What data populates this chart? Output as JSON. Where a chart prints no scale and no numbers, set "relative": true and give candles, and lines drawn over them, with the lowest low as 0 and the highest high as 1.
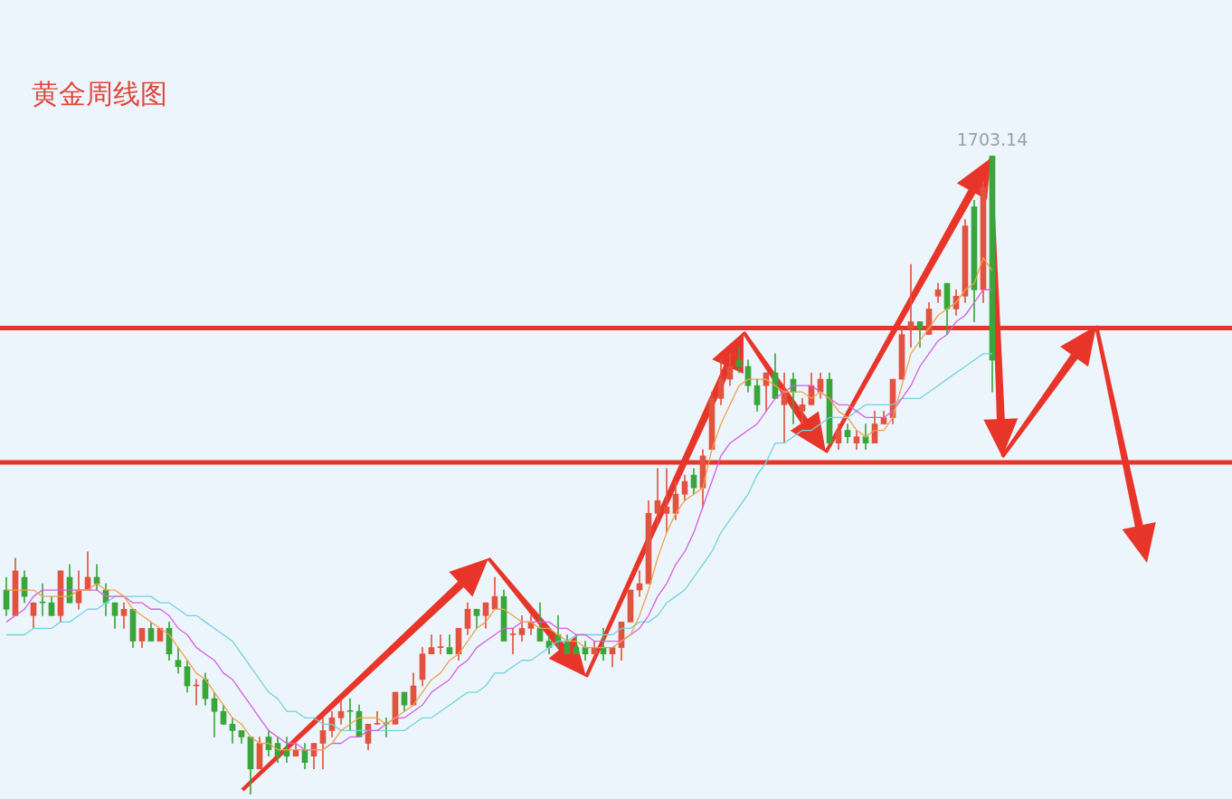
{
  "chart_data": {
    "type": "candlestick",
    "title": "黄金周线图",
    "relative": true,
    "categories": [
      null,
      null,
      null,
      null,
      null,
      null,
      null,
      null,
      null,
      null,
      null,
      null,
      null,
      null,
      null,
      null,
      null,
      null,
      null,
      null,
      null,
      null,
      null,
      null,
      null,
      null,
      null,
      null,
      null,
      null,
      null,
      null,
      null,
      null,
      null,
      null,
      null,
      null,
      null,
      null,
      null,
      null,
      null,
      null,
      null,
      null,
      null,
      null,
      null,
      null,
      null,
      null,
      null,
      null,
      null,
      null,
      null,
      null,
      null,
      null,
      null,
      null,
      null,
      null,
      null,
      null,
      null,
      null,
      null,
      null,
      null,
      null,
      null,
      null,
      null,
      null,
      null,
      null,
      null,
      null,
      null,
      null,
      null,
      null,
      null,
      null,
      null,
      null,
      null,
      null,
      null,
      null,
      null,
      null,
      null,
      null,
      null,
      null,
      null,
      null,
      null,
      null,
      null,
      null,
      null,
      null,
      null,
      null,
      null,
      null
    ],
    "ohlc": [
      [
        0.32,
        0.34,
        0.28,
        0.29
      ],
      [
        0.28,
        0.37,
        0.28,
        0.35
      ],
      [
        0.34,
        0.35,
        0.3,
        0.31
      ],
      [
        0.28,
        0.3,
        0.26,
        0.3
      ],
      [
        0.3,
        0.33,
        0.28,
        0.3
      ],
      [
        0.3,
        0.31,
        0.28,
        0.28
      ],
      [
        0.28,
        0.35,
        0.27,
        0.35
      ],
      [
        0.34,
        0.36,
        0.3,
        0.3
      ],
      [
        0.3,
        0.35,
        0.29,
        0.32
      ],
      [
        0.32,
        0.38,
        0.32,
        0.34
      ],
      [
        0.34,
        0.36,
        0.32,
        0.33
      ],
      [
        0.32,
        0.33,
        0.28,
        0.3
      ],
      [
        0.3,
        0.3,
        0.26,
        0.28
      ],
      [
        0.28,
        0.3,
        0.26,
        0.29
      ],
      [
        0.29,
        0.29,
        0.23,
        0.24
      ],
      [
        0.24,
        0.26,
        0.23,
        0.26
      ],
      [
        0.26,
        0.27,
        0.24,
        0.24
      ],
      [
        0.24,
        0.26,
        0.24,
        0.26
      ],
      [
        0.26,
        0.27,
        0.21,
        0.22
      ],
      [
        0.21,
        0.23,
        0.19,
        0.2
      ],
      [
        0.2,
        0.21,
        0.16,
        0.17
      ],
      [
        0.17,
        0.18,
        0.14,
        0.17
      ],
      [
        0.18,
        0.19,
        0.14,
        0.15
      ],
      [
        0.15,
        0.16,
        0.09,
        0.13
      ],
      [
        0.13,
        0.14,
        0.11,
        0.11
      ],
      [
        0.11,
        0.12,
        0.08,
        0.1
      ],
      [
        0.1,
        0.1,
        0.08,
        0.09
      ],
      [
        0.09,
        0.09,
        0,
        0.04
      ],
      [
        0.04,
        0.09,
        0.04,
        0.08
      ],
      [
        0.09,
        0.1,
        0.06,
        0.07
      ],
      [
        0.08,
        0.09,
        0.05,
        0.06
      ],
      [
        0.07,
        0.09,
        0.05,
        0.06
      ],
      [
        0.06,
        0.08,
        0.06,
        0.07
      ],
      [
        0.07,
        0.08,
        0.04,
        0.05
      ],
      [
        0.06,
        0.08,
        0.04,
        0.08
      ],
      [
        0.08,
        0.12,
        0.04,
        0.1
      ],
      [
        0.1,
        0.13,
        0.09,
        0.12
      ],
      [
        0.12,
        0.15,
        0.11,
        0.13
      ],
      [
        0.13,
        0.15,
        0.1,
        0.13
      ],
      [
        0.13,
        0.14,
        0.09,
        0.09
      ],
      [
        0.08,
        0.11,
        0.07,
        0.11
      ],
      [
        0.11,
        0.13,
        0.11,
        0.11
      ],
      [
        0.11,
        0.12,
        0.09,
        0.11
      ],
      [
        0.11,
        0.16,
        0.11,
        0.16
      ],
      [
        0.16,
        0.16,
        0.13,
        0.14
      ],
      [
        0.14,
        0.19,
        0.14,
        0.17
      ],
      [
        0.18,
        0.23,
        0.17,
        0.22
      ],
      [
        0.22,
        0.25,
        0.22,
        0.23
      ],
      [
        0.23,
        0.25,
        0.22,
        0.23
      ],
      [
        0.23,
        0.25,
        0.22,
        0.22
      ],
      [
        0.22,
        0.26,
        0.21,
        0.26
      ],
      [
        0.26,
        0.3,
        0.25,
        0.29
      ],
      [
        0.29,
        0.29,
        0.26,
        0.28
      ],
      [
        0.28,
        0.3,
        0.26,
        0.3
      ],
      [
        0.29,
        0.34,
        0.29,
        0.31
      ],
      [
        0.31,
        0.32,
        0.24,
        0.24
      ],
      [
        0.25,
        0.26,
        0.22,
        0.25
      ],
      [
        0.25,
        0.28,
        0.24,
        0.26
      ],
      [
        0.26,
        0.28,
        0.25,
        0.27
      ],
      [
        0.26,
        0.3,
        0.24,
        0.24
      ],
      [
        0.24,
        0.25,
        0.22,
        0.23
      ],
      [
        0.25,
        0.28,
        0.23,
        0.24
      ],
      [
        0.24,
        0.25,
        0.22,
        0.22
      ],
      [
        0.23,
        0.25,
        0.22,
        0.22
      ],
      [
        0.23,
        0.24,
        0.21,
        0.22
      ],
      [
        0.22,
        0.24,
        0.22,
        0.23
      ],
      [
        0.23,
        0.26,
        0.21,
        0.22
      ],
      [
        0.22,
        0.23,
        0.2,
        0.23
      ],
      [
        0.23,
        0.27,
        0.21,
        0.27
      ],
      [
        0.27,
        0.32,
        0.27,
        0.32
      ],
      [
        0.32,
        0.35,
        0.31,
        0.33
      ],
      [
        0.33,
        0.46,
        0.33,
        0.44
      ],
      [
        0.44,
        0.51,
        0.42,
        0.46
      ],
      [
        0.44,
        0.51,
        0.41,
        0.45
      ],
      [
        0.44,
        0.49,
        0.43,
        0.47
      ],
      [
        0.47,
        0.5,
        0.46,
        0.49
      ],
      [
        0.5,
        0.51,
        0.47,
        0.48
      ],
      [
        0.48,
        0.54,
        0.45,
        0.53
      ],
      [
        0.54,
        0.63,
        0.54,
        0.62
      ],
      [
        0.62,
        0.68,
        0.61,
        0.65
      ],
      [
        0.65,
        0.69,
        0.64,
        0.67
      ],
      [
        0.68,
        0.7,
        0.66,
        0.67
      ],
      [
        0.67,
        0.68,
        0.63,
        0.64
      ],
      [
        0.64,
        0.65,
        0.6,
        0.61
      ],
      [
        0.64,
        0.66,
        0.6,
        0.66
      ],
      [
        0.66,
        0.69,
        0.62,
        0.62
      ],
      [
        0.61,
        0.66,
        0.55,
        0.63
      ],
      [
        0.65,
        0.66,
        0.58,
        0.63
      ],
      [
        0.6,
        0.62,
        0.58,
        0.61
      ],
      [
        0.61,
        0.66,
        0.61,
        0.64
      ],
      [
        0.63,
        0.66,
        0.62,
        0.65
      ],
      [
        0.65,
        0.66,
        0.55,
        0.55
      ],
      [
        0.55,
        0.58,
        0.54,
        0.57
      ],
      [
        0.57,
        0.58,
        0.55,
        0.56
      ],
      [
        0.55,
        0.57,
        0.54,
        0.56
      ],
      [
        0.56,
        0.58,
        0.54,
        0.55
      ],
      [
        0.55,
        0.6,
        0.55,
        0.58
      ],
      [
        0.58,
        0.6,
        0.58,
        0.59
      ],
      [
        0.59,
        0.65,
        0.58,
        0.65
      ],
      [
        0.65,
        0.73,
        0.65,
        0.72
      ],
      [
        0.73,
        0.83,
        0.7,
        0.74
      ],
      [
        0.74,
        0.74,
        0.7,
        0.73
      ],
      [
        0.72,
        0.77,
        0.72,
        0.76
      ],
      [
        0.78,
        0.8,
        0.77,
        0.79
      ],
      [
        0.8,
        0.8,
        0.72,
        0.76
      ],
      [
        0.76,
        0.79,
        0.75,
        0.78
      ],
      [
        0.78,
        0.9,
        0.77,
        0.89
      ],
      [
        0.92,
        0.93,
        0.74,
        0.79
      ],
      [
        0.79,
        0.96,
        0.77,
        0.95
      ],
      [
        1,
        1,
        0.63,
        0.68
      ]
    ],
    "colors": [
      "#3aa53a",
      "#e2533f",
      "#3aa53a",
      "#e2533f",
      "#3aa53a",
      "#3aa53a",
      "#e2533f",
      "#3aa53a",
      "#e2533f",
      "#e2533f",
      "#3aa53a",
      "#3aa53a",
      "#3aa53a",
      "#e2533f",
      "#3aa53a",
      "#e2533f",
      "#3aa53a",
      "#e2533f",
      "#3aa53a",
      "#3aa53a",
      "#3aa53a",
      "#e2533f",
      "#3aa53a",
      "#3aa53a",
      "#3aa53a",
      "#3aa53a",
      "#3aa53a",
      "#3aa53a",
      "#e2533f",
      "#3aa53a",
      "#3aa53a",
      "#3aa53a",
      "#e2533f",
      "#3aa53a",
      "#e2533f",
      "#e2533f",
      "#e2533f",
      "#e2533f",
      "#3aa53a",
      "#3aa53a",
      "#e2533f",
      "#e2533f",
      "#3aa53a",
      "#e2533f",
      "#3aa53a",
      "#e2533f",
      "#e2533f",
      "#e2533f",
      "#e2533f",
      "#3aa53a",
      "#e2533f",
      "#e2533f",
      "#3aa53a",
      "#e2533f",
      "#e2533f",
      "#3aa53a",
      "#e2533f",
      "#e2533f",
      "#e2533f",
      "#3aa53a",
      "#3aa53a",
      "#3aa53a",
      "#3aa53a",
      "#3aa53a",
      "#3aa53a",
      "#e2533f",
      "#3aa53a",
      "#e2533f",
      "#e2533f",
      "#e2533f",
      "#e2533f",
      "#e2533f",
      "#e2533f",
      "#e2533f",
      "#e2533f",
      "#e2533f",
      "#3aa53a",
      "#e2533f",
      "#e2533f",
      "#e2533f",
      "#e2533f",
      "#3aa53a",
      "#3aa53a",
      "#3aa53a",
      "#e2533f",
      "#3aa53a",
      "#e2533f",
      "#3aa53a",
      "#e2533f",
      "#e2533f",
      "#e2533f",
      "#3aa53a",
      "#e2533f",
      "#3aa53a",
      "#e2533f",
      "#3aa53a",
      "#e2533f",
      "#e2533f",
      "#e2533f",
      "#e2533f",
      "#e2533f",
      "#3aa53a",
      "#e2533f",
      "#e2533f",
      "#3aa53a",
      "#e2533f",
      "#e2533f",
      "#3aa53a",
      "#e2533f",
      "#3aa53a"
    ],
    "series": [
      {
        "type": "line",
        "color": "#f0a04b",
        "values": [
          0.32,
          0.32,
          0.32,
          0.32,
          0.31,
          0.31,
          0.31,
          0.31,
          0.32,
          0.32,
          0.33,
          0.32,
          0.32,
          0.31,
          0.29,
          0.28,
          0.27,
          0.26,
          0.25,
          0.23,
          0.21,
          0.19,
          0.18,
          0.16,
          0.14,
          0.12,
          0.11,
          0.09,
          0.08,
          0.08,
          0.07,
          0.07,
          0.07,
          0.07,
          0.07,
          0.07,
          0.08,
          0.1,
          0.11,
          0.12,
          0.12,
          0.12,
          0.11,
          0.12,
          0.13,
          0.14,
          0.16,
          0.18,
          0.19,
          0.21,
          0.22,
          0.24,
          0.26,
          0.27,
          0.29,
          0.29,
          0.28,
          0.27,
          0.27,
          0.26,
          0.26,
          0.25,
          0.24,
          0.24,
          0.23,
          0.23,
          0.23,
          0.23,
          0.24,
          0.25,
          0.28,
          0.32,
          0.37,
          0.41,
          0.44,
          0.46,
          0.47,
          0.48,
          0.54,
          0.58,
          0.61,
          0.64,
          0.65,
          0.65,
          0.65,
          0.64,
          0.63,
          0.63,
          0.63,
          0.62,
          0.63,
          0.62,
          0.6,
          0.59,
          0.57,
          0.56,
          0.57,
          0.57,
          0.59,
          0.64,
          0.69,
          0.71,
          0.73,
          0.75,
          0.76,
          0.77,
          0.79,
          0.8,
          0.84,
          0.82
        ]
      },
      {
        "type": "line",
        "color": "#d65ee0",
        "values": [
          0.27,
          0.28,
          0.29,
          0.31,
          0.32,
          0.32,
          0.32,
          0.32,
          0.32,
          0.32,
          0.32,
          0.31,
          0.31,
          0.31,
          0.3,
          0.3,
          0.29,
          0.29,
          0.28,
          0.26,
          0.25,
          0.23,
          0.22,
          0.21,
          0.19,
          0.18,
          0.16,
          0.14,
          0.12,
          0.1,
          0.09,
          0.08,
          0.08,
          0.07,
          0.07,
          0.07,
          0.08,
          0.08,
          0.09,
          0.09,
          0.1,
          0.1,
          0.11,
          0.12,
          0.12,
          0.13,
          0.14,
          0.16,
          0.17,
          0.18,
          0.2,
          0.21,
          0.23,
          0.24,
          0.25,
          0.26,
          0.26,
          0.27,
          0.27,
          0.27,
          0.27,
          0.26,
          0.26,
          0.25,
          0.25,
          0.24,
          0.24,
          0.24,
          0.24,
          0.25,
          0.26,
          0.28,
          0.31,
          0.33,
          0.36,
          0.38,
          0.41,
          0.45,
          0.49,
          0.53,
          0.55,
          0.56,
          0.57,
          0.58,
          0.6,
          0.62,
          0.63,
          0.64,
          0.64,
          0.64,
          0.63,
          0.62,
          0.61,
          0.61,
          0.6,
          0.59,
          0.59,
          0.59,
          0.6,
          0.62,
          0.64,
          0.67,
          0.69,
          0.71,
          0.72,
          0.74,
          0.75,
          0.77,
          0.79,
          0.79
        ]
      },
      {
        "type": "line",
        "color": "#6fd3e0",
        "values": [
          0.25,
          0.25,
          0.25,
          0.26,
          0.26,
          0.26,
          0.27,
          0.27,
          0.28,
          0.29,
          0.29,
          0.3,
          0.31,
          0.31,
          0.31,
          0.31,
          0.31,
          0.3,
          0.3,
          0.29,
          0.28,
          0.28,
          0.27,
          0.26,
          0.25,
          0.24,
          0.22,
          0.2,
          0.18,
          0.16,
          0.15,
          0.13,
          0.13,
          0.12,
          0.12,
          0.11,
          0.11,
          0.1,
          0.1,
          0.1,
          0.1,
          0.1,
          0.1,
          0.1,
          0.1,
          0.11,
          0.12,
          0.12,
          0.13,
          0.14,
          0.15,
          0.16,
          0.16,
          0.17,
          0.19,
          0.19,
          0.2,
          0.21,
          0.21,
          0.22,
          0.23,
          0.24,
          0.24,
          0.25,
          0.25,
          0.25,
          0.25,
          0.25,
          0.26,
          0.26,
          0.27,
          0.27,
          0.28,
          0.3,
          0.31,
          0.32,
          0.34,
          0.36,
          0.38,
          0.41,
          0.43,
          0.45,
          0.47,
          0.5,
          0.52,
          0.55,
          0.55,
          0.56,
          0.57,
          0.57,
          0.58,
          0.59,
          0.59,
          0.59,
          0.6,
          0.61,
          0.61,
          0.61,
          0.61,
          0.62,
          0.62,
          0.62,
          0.63,
          0.64,
          0.65,
          0.66,
          0.67,
          0.68,
          0.69,
          0.69
        ]
      }
    ],
    "ref_lines": [
      {
        "axis": "y",
        "value": 0.73,
        "color": "#e8352a"
      },
      {
        "axis": "y",
        "value": 0.52,
        "color": "#e8352a"
      }
    ],
    "annotations": [
      {
        "text": "1703.14",
        "y": 1
      }
    ]
  }
}
